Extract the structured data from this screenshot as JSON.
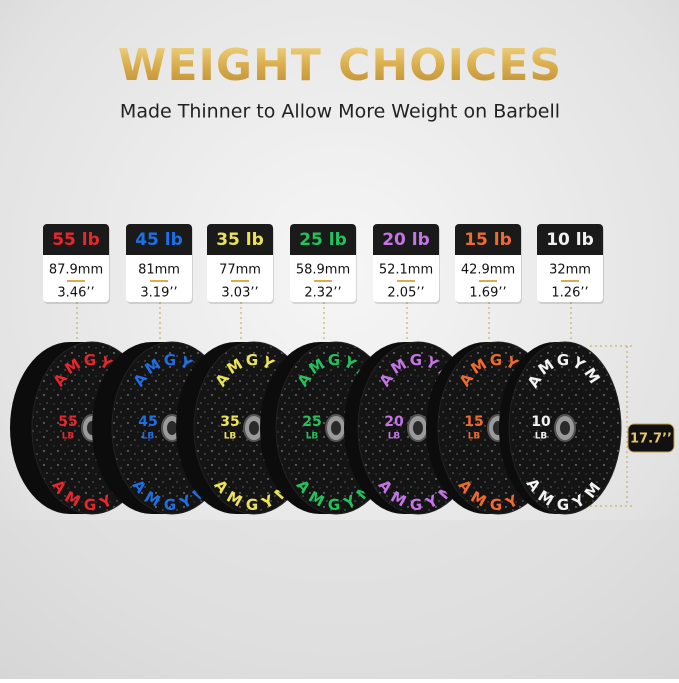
{
  "header": {
    "title": "WEIGHT CHOICES",
    "subtitle": "Made Thinner to Allow More Weight on Barbell"
  },
  "plates": [
    {
      "label": "55 lb",
      "thickness_mm": "87.9mm",
      "thickness_in": "3.46’’",
      "number": "55",
      "unit": "LB",
      "color": "#e8262c"
    },
    {
      "label": "45 lb",
      "thickness_mm": "81mm",
      "thickness_in": "3.19’’",
      "number": "45",
      "unit": "LB",
      "color": "#1e6fe6"
    },
    {
      "label": "35 lb",
      "thickness_mm": "77mm",
      "thickness_in": "3.03’’",
      "number": "35",
      "unit": "LB",
      "color": "#ece25a"
    },
    {
      "label": "25 lb",
      "thickness_mm": "58.9mm",
      "thickness_in": "2.32’’",
      "number": "25",
      "unit": "LB",
      "color": "#22c25c"
    },
    {
      "label": "20 lb",
      "thickness_mm": "52.1mm",
      "thickness_in": "2.05’’",
      "number": "20",
      "unit": "LB",
      "color": "#c474e6"
    },
    {
      "label": "15 lb",
      "thickness_mm": "42.9mm",
      "thickness_in": "1.69’’",
      "number": "15",
      "unit": "LB",
      "color": "#f06a30"
    },
    {
      "label": "10 lb",
      "thickness_mm": "32mm",
      "thickness_in": "1.26’’",
      "number": "10",
      "unit": "LB",
      "color": "#f2f2f2"
    }
  ],
  "brand": "AMGYM",
  "diameter": "17.7’’"
}
